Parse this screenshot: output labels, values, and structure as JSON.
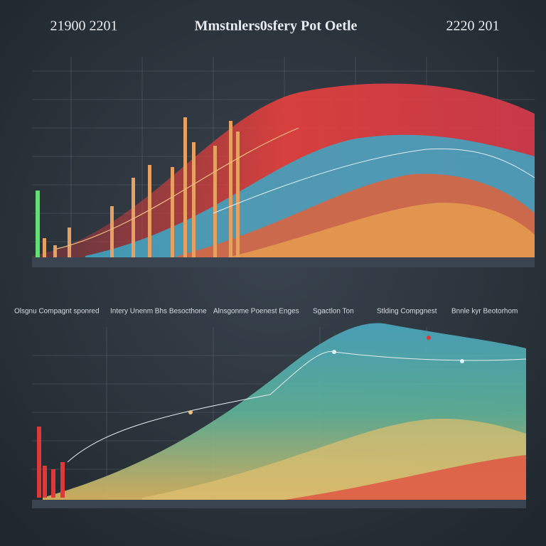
{
  "header": {
    "left": "21900 2201",
    "title": "Mmstnlers0sfery Pot Oetle",
    "right": "2220 201"
  },
  "lower_panel": {
    "legend": [
      "Olsgnu Compagnt sponred",
      "Intery Unenm Bhs Besocthone",
      "Alnsgonme Poenest Enges",
      "Sgactlon Ton",
      "Stlding Compgnest",
      "Bnnle kyr Beotorhom"
    ]
  }
}
